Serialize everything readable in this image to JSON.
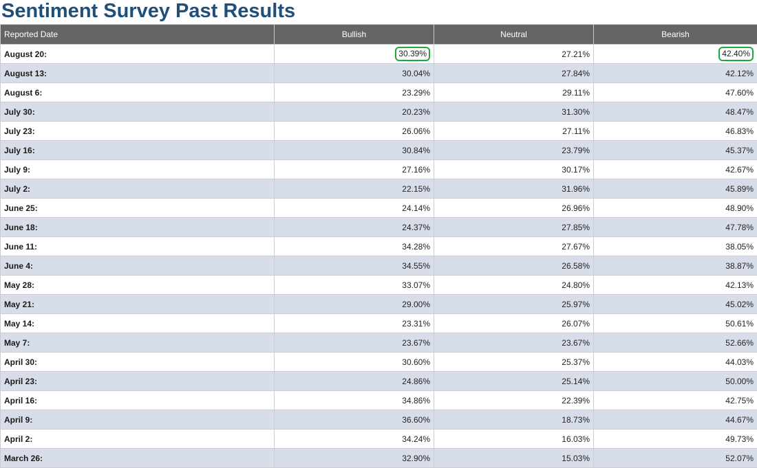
{
  "page": {
    "title": "Sentiment Survey Past Results"
  },
  "table": {
    "columns": [
      "Reported Date",
      "Bullish",
      "Neutral",
      "Bearish"
    ],
    "highlight_color": "#1da83c",
    "rows": [
      {
        "date": "August 20:",
        "bullish": "30.39%",
        "neutral": "27.21%",
        "bearish": "42.40%",
        "highlight": [
          "bullish",
          "bearish"
        ]
      },
      {
        "date": "August 13:",
        "bullish": "30.04%",
        "neutral": "27.84%",
        "bearish": "42.12%"
      },
      {
        "date": "August 6:",
        "bullish": "23.29%",
        "neutral": "29.11%",
        "bearish": "47.60%"
      },
      {
        "date": "July 30:",
        "bullish": "20.23%",
        "neutral": "31.30%",
        "bearish": "48.47%"
      },
      {
        "date": "July 23:",
        "bullish": "26.06%",
        "neutral": "27.11%",
        "bearish": "46.83%"
      },
      {
        "date": "July 16:",
        "bullish": "30.84%",
        "neutral": "23.79%",
        "bearish": "45.37%"
      },
      {
        "date": "July 9:",
        "bullish": "27.16%",
        "neutral": "30.17%",
        "bearish": "42.67%"
      },
      {
        "date": "July 2:",
        "bullish": "22.15%",
        "neutral": "31.96%",
        "bearish": "45.89%"
      },
      {
        "date": "June 25:",
        "bullish": "24.14%",
        "neutral": "26.96%",
        "bearish": "48.90%"
      },
      {
        "date": "June 18:",
        "bullish": "24.37%",
        "neutral": "27.85%",
        "bearish": "47.78%"
      },
      {
        "date": "June 11:",
        "bullish": "34.28%",
        "neutral": "27.67%",
        "bearish": "38.05%"
      },
      {
        "date": "June 4:",
        "bullish": "34.55%",
        "neutral": "26.58%",
        "bearish": "38.87%"
      },
      {
        "date": "May 28:",
        "bullish": "33.07%",
        "neutral": "24.80%",
        "bearish": "42.13%"
      },
      {
        "date": "May 21:",
        "bullish": "29.00%",
        "neutral": "25.97%",
        "bearish": "45.02%"
      },
      {
        "date": "May 14:",
        "bullish": "23.31%",
        "neutral": "26.07%",
        "bearish": "50.61%"
      },
      {
        "date": "May 7:",
        "bullish": "23.67%",
        "neutral": "23.67%",
        "bearish": "52.66%"
      },
      {
        "date": "April 30:",
        "bullish": "30.60%",
        "neutral": "25.37%",
        "bearish": "44.03%"
      },
      {
        "date": "April 23:",
        "bullish": "24.86%",
        "neutral": "25.14%",
        "bearish": "50.00%"
      },
      {
        "date": "April 16:",
        "bullish": "34.86%",
        "neutral": "22.39%",
        "bearish": "42.75%"
      },
      {
        "date": "April 9:",
        "bullish": "36.60%",
        "neutral": "18.73%",
        "bearish": "44.67%"
      },
      {
        "date": "April 2:",
        "bullish": "34.24%",
        "neutral": "16.03%",
        "bearish": "49.73%"
      },
      {
        "date": "March 26:",
        "bullish": "32.90%",
        "neutral": "15.03%",
        "bearish": "52.07%"
      }
    ]
  }
}
